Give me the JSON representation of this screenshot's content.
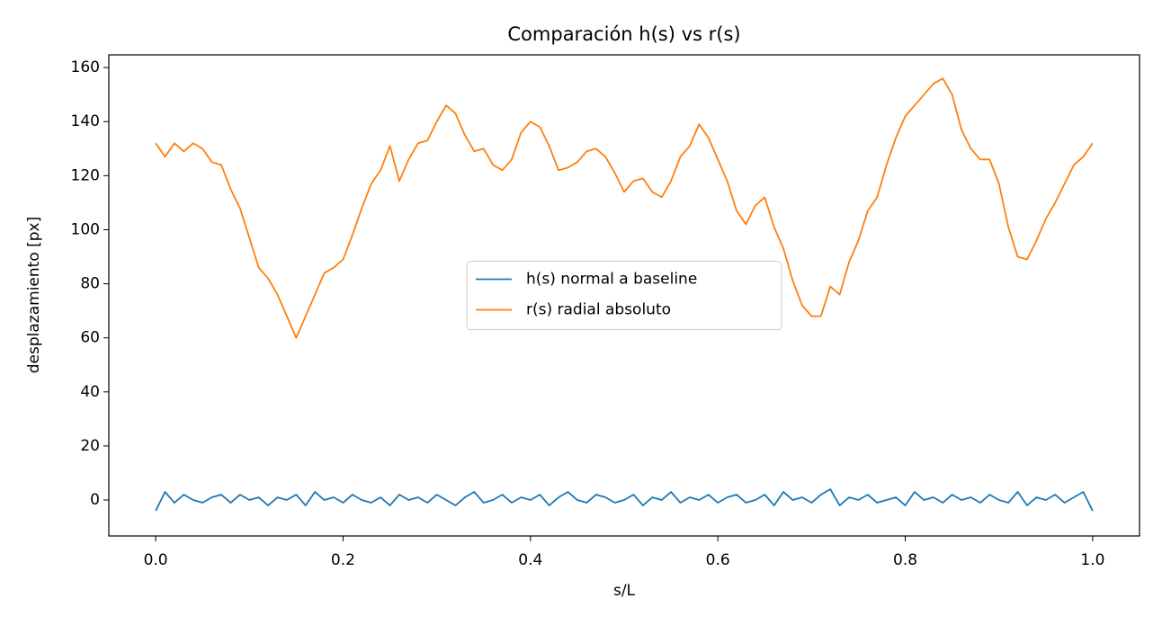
{
  "chart_data": {
    "type": "line",
    "title": "Comparación h(s) vs r(s)",
    "x_label": "s/L",
    "y_label": "desplazamiento [px]",
    "x": [
      0,
      0.01,
      0.02,
      0.03,
      0.04,
      0.05,
      0.06,
      0.07,
      0.08,
      0.09,
      0.1,
      0.11,
      0.12,
      0.13,
      0.14,
      0.15,
      0.16,
      0.17,
      0.18,
      0.19,
      0.2,
      0.21,
      0.22,
      0.23,
      0.24,
      0.25,
      0.26,
      0.27,
      0.28,
      0.29,
      0.3,
      0.31,
      0.32,
      0.33,
      0.34,
      0.35,
      0.36,
      0.37,
      0.38,
      0.39,
      0.4,
      0.41,
      0.42,
      0.43,
      0.44,
      0.45,
      0.46,
      0.47,
      0.48,
      0.49,
      0.5,
      0.51,
      0.52,
      0.53,
      0.54,
      0.55,
      0.56,
      0.57,
      0.58,
      0.59,
      0.6,
      0.61,
      0.62,
      0.63,
      0.64,
      0.65,
      0.66,
      0.67,
      0.68,
      0.69,
      0.7,
      0.71,
      0.72,
      0.73,
      0.74,
      0.75,
      0.76,
      0.77,
      0.78,
      0.79,
      0.8,
      0.81,
      0.82,
      0.83,
      0.84,
      0.85,
      0.86,
      0.87,
      0.88,
      0.89,
      0.9,
      0.91,
      0.92,
      0.93,
      0.94,
      0.95,
      0.96,
      0.97,
      0.98,
      0.99,
      1
    ],
    "series": [
      {
        "name": "h(s) normal a baseline",
        "color": "#1f77b4",
        "values": [
          -4,
          3,
          -1,
          2,
          0,
          -1,
          1,
          2,
          -1,
          2,
          0,
          1,
          -2,
          1,
          0,
          2,
          -2,
          3,
          0,
          1,
          -1,
          2,
          0,
          -1,
          1,
          -2,
          2,
          0,
          1,
          -1,
          2,
          0,
          -2,
          1,
          3,
          -1,
          0,
          2,
          -1,
          1,
          0,
          2,
          -2,
          1,
          3,
          0,
          -1,
          2,
          1,
          -1,
          0,
          2,
          -2,
          1,
          0,
          3,
          -1,
          1,
          0,
          2,
          -1,
          1,
          2,
          -1,
          0,
          2,
          -2,
          3,
          0,
          1,
          -1,
          2,
          4,
          -2,
          1,
          0,
          2,
          -1,
          0,
          1,
          -2,
          3,
          0,
          1,
          -1,
          2,
          0,
          1,
          -1,
          2,
          0,
          -1,
          3,
          -2,
          1,
          0,
          2,
          -1,
          1,
          3,
          -4
        ]
      },
      {
        "name": "r(s) radial absoluto",
        "color": "#ff7f0e",
        "values": [
          132,
          127,
          132,
          129,
          132,
          130,
          125,
          124,
          115,
          108,
          97,
          86,
          82,
          76,
          68,
          60,
          68,
          76,
          84,
          86,
          89,
          98,
          108,
          117,
          122,
          131,
          118,
          126,
          132,
          133,
          140,
          146,
          143,
          135,
          129,
          130,
          124,
          122,
          126,
          136,
          140,
          138,
          131,
          122,
          123,
          125,
          129,
          130,
          127,
          121,
          114,
          118,
          119,
          114,
          112,
          118,
          127,
          131,
          139,
          134,
          126,
          118,
          107,
          102,
          109,
          112,
          101,
          93,
          81,
          72,
          68,
          68,
          79,
          76,
          88,
          96,
          107,
          112,
          124,
          134,
          142,
          146,
          150,
          154,
          156,
          150,
          137,
          130,
          126,
          126,
          117,
          101,
          90,
          89,
          96,
          104,
          110,
          117,
          124,
          127,
          132
        ]
      }
    ],
    "xlim": [
      -0.05,
      1.05
    ],
    "ylim": [
      -13.3,
      164.7
    ],
    "xticks": [
      {
        "value": 0,
        "label": "0.0"
      },
      0.2,
      0.4,
      0.6,
      0.8,
      {
        "value": 1,
        "label": "1.0"
      }
    ],
    "yticks": [
      0,
      20,
      40,
      60,
      80,
      100,
      120,
      140,
      160
    ],
    "grid": false,
    "legend": "center"
  }
}
